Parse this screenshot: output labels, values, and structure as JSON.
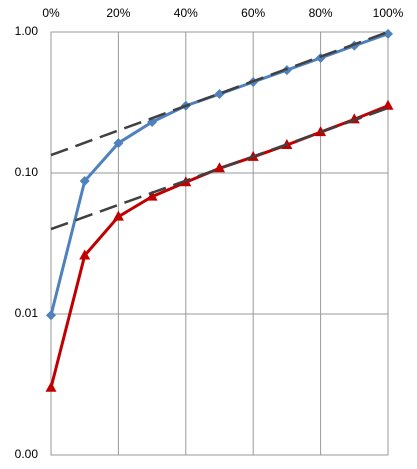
{
  "chart_data": {
    "type": "line",
    "log_y": true,
    "grid": true,
    "x": [
      0,
      10,
      20,
      30,
      40,
      50,
      60,
      70,
      80,
      90,
      100
    ],
    "xlim": [
      0,
      100
    ],
    "xticks": [
      {
        "value": 0,
        "label": "0%"
      },
      {
        "value": 20,
        "label": "20%"
      },
      {
        "value": 40,
        "label": "40%"
      },
      {
        "value": 60,
        "label": "60%"
      },
      {
        "value": 80,
        "label": "80%"
      },
      {
        "value": 100,
        "label": "100%"
      }
    ],
    "ylim": [
      0.001,
      1
    ],
    "yticks": [
      {
        "value": 0.001,
        "label": "0.00"
      },
      {
        "value": 0.01,
        "label": "0.01"
      },
      {
        "value": 0.1,
        "label": "0.10"
      },
      {
        "value": 1,
        "label": "1.00"
      }
    ],
    "series": [
      {
        "color": "#4f81bd",
        "marker": "diamond",
        "values": [
          0.0098,
          0.0877,
          0.163,
          0.23,
          0.3,
          0.363,
          0.442,
          0.537,
          0.654,
          0.8,
          0.97
        ]
      },
      {
        "color": "#c00000",
        "marker": "triangle",
        "values": [
          0.003,
          0.026,
          0.049,
          0.068,
          0.086,
          0.108,
          0.13,
          0.158,
          0.195,
          0.24,
          0.3
        ]
      },
      {
        "color": "#404040",
        "dashed": true,
        "x": [
          0,
          100
        ],
        "values": [
          0.134,
          1.0
        ]
      },
      {
        "color": "#404040",
        "dashed": true,
        "x": [
          0,
          100
        ],
        "values": [
          0.04,
          0.289
        ]
      }
    ]
  }
}
